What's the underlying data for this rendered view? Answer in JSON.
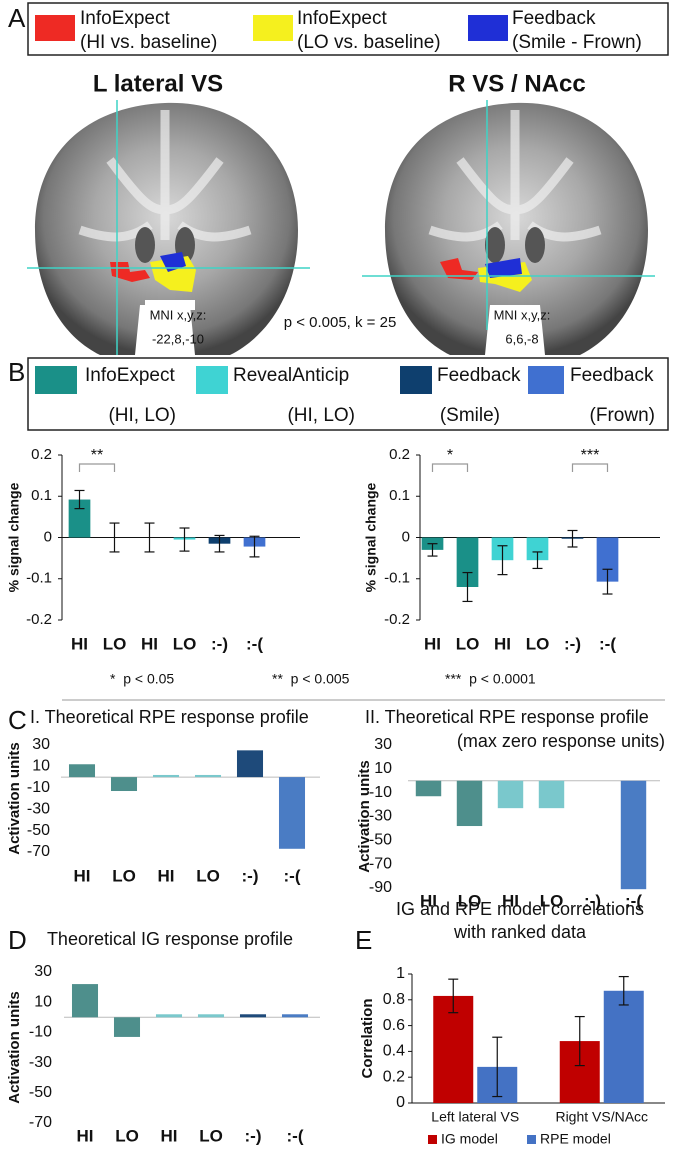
{
  "panel_labels": {
    "a": "A",
    "b": "B",
    "c": "C",
    "d": "D",
    "e": "E"
  },
  "panel_a": {
    "legend": [
      {
        "name": "InfoExpect",
        "detail": "(HI vs. baseline)",
        "color": "#ee2a24"
      },
      {
        "name": "InfoExpect",
        "detail": "(LO vs. baseline)",
        "color": "#f5f01e"
      },
      {
        "name": "Feedback",
        "detail": "(Smile - Frown)",
        "color": "#1f2fd6"
      }
    ],
    "images": [
      {
        "title": "L lateral VS",
        "coords_label": "MNI x,y,z:",
        "coords": "-22,8,-10"
      },
      {
        "title": "R VS / NAcc",
        "coords_label": "MNI x,y,z:",
        "coords": "6,6,-8"
      }
    ],
    "threshold": "p < 0.005, k = 25"
  },
  "panel_b": {
    "legend": [
      {
        "name": "InfoExpect",
        "detail": "(HI, LO)",
        "color": "#1a9088"
      },
      {
        "name": "RevealAnticip",
        "detail": "(HI, LO)",
        "color": "#3fd3d3"
      },
      {
        "name": "Feedback",
        "detail": "(Smile)",
        "color": "#0e3f6e"
      },
      {
        "name": "Feedback",
        "detail": "(Frown)",
        "color": "#4070d0"
      }
    ],
    "significance": [
      "*  p < 0.05",
      "**  p < 0.005",
      "***  p < 0.0001"
    ]
  },
  "chart_data": [
    {
      "type": "bar",
      "y_label": "% signal change",
      "categories": [
        "HI",
        "LO",
        "HI",
        "LO",
        ":-)",
        ":-("
      ],
      "values": [
        0.092,
        0.0,
        0.0,
        -0.005,
        -0.015,
        -0.022
      ],
      "errors": [
        0.022,
        0.035,
        0.035,
        0.028,
        0.02,
        0.025
      ],
      "colors": [
        "#1a9088",
        "#1a9088",
        "#3fd3d3",
        "#3fd3d3",
        "#0e3f6e",
        "#4070d0"
      ],
      "ylim": [
        -0.2,
        0.2
      ],
      "yticks": [
        0.2,
        0.1,
        0,
        -0.1,
        -0.2
      ],
      "brackets": [
        {
          "label": "**",
          "categories": [
            0,
            1
          ]
        }
      ]
    },
    {
      "type": "bar",
      "y_label": "% signal change",
      "categories": [
        "HI",
        "LO",
        "HI",
        "LO",
        ":-)",
        ":-("
      ],
      "values": [
        -0.03,
        -0.12,
        -0.055,
        -0.055,
        -0.003,
        -0.107
      ],
      "errors": [
        0.015,
        0.035,
        0.035,
        0.02,
        0.02,
        0.03
      ],
      "colors": [
        "#1a9088",
        "#1a9088",
        "#3fd3d3",
        "#3fd3d3",
        "#0e3f6e",
        "#4070d0"
      ],
      "ylim": [
        -0.2,
        0.2
      ],
      "yticks": [
        0.2,
        0.1,
        0,
        -0.1,
        -0.2
      ],
      "brackets": [
        {
          "label": "*",
          "categories": [
            0,
            1
          ]
        },
        {
          "label": "***",
          "categories": [
            4,
            5
          ]
        }
      ]
    },
    {
      "type": "bar",
      "title": "I. Theoretical RPE response profile",
      "y_label": "Activation units",
      "categories": [
        "HI",
        "LO",
        "HI",
        "LO",
        ":-)",
        ":-("
      ],
      "values": [
        12,
        -13,
        2,
        2,
        25,
        -67
      ],
      "colors": [
        "#4e8f8c",
        "#4e8f8c",
        "#7ac8cc",
        "#7ac8cc",
        "#1e4a7a",
        "#4a7cc4"
      ],
      "ylim": [
        -70,
        30
      ],
      "yticks": [
        30,
        10,
        -10,
        -30,
        -50,
        -70
      ]
    },
    {
      "type": "bar",
      "title": "II. Theoretical RPE response profile",
      "subtitle": "(max zero response units)",
      "y_label": "Activation units",
      "categories": [
        "HI",
        "LO",
        "HI",
        "LO",
        ":-)",
        ":-("
      ],
      "values": [
        -13,
        -38,
        -23,
        -23,
        0,
        -91
      ],
      "colors": [
        "#4e8f8c",
        "#4e8f8c",
        "#7ac8cc",
        "#7ac8cc",
        "#1e4a7a",
        "#4a7cc4"
      ],
      "ylim": [
        -90,
        30
      ],
      "yticks": [
        30,
        10,
        -10,
        -30,
        -50,
        -70,
        -90
      ]
    },
    {
      "type": "bar",
      "title": "Theoretical IG response profile",
      "y_label": "Activation units",
      "categories": [
        "HI",
        "LO",
        "HI",
        "LO",
        ":-)",
        ":-("
      ],
      "values": [
        22,
        -13,
        2,
        2,
        2,
        2
      ],
      "colors": [
        "#4e8f8c",
        "#4e8f8c",
        "#7ac8cc",
        "#7ac8cc",
        "#1e4a7a",
        "#4a7cc4"
      ],
      "ylim": [
        -70,
        30
      ],
      "yticks": [
        30,
        10,
        -10,
        -30,
        -50,
        -70
      ]
    },
    {
      "type": "grouped_bar",
      "title": "IG and RPE model correlations",
      "subtitle": "with ranked data",
      "y_label": "Correlation",
      "categories": [
        "Left lateral VS",
        "Right VS/NAcc"
      ],
      "series": [
        {
          "name": "IG model",
          "color": "#c00000",
          "values": [
            0.83,
            0.48
          ],
          "errors": [
            0.13,
            0.19
          ]
        },
        {
          "name": "RPE model",
          "color": "#4472c4",
          "values": [
            0.28,
            0.87
          ],
          "errors": [
            0.23,
            0.11
          ]
        }
      ],
      "ylim": [
        0,
        1
      ],
      "yticks": [
        0,
        0.2,
        0.4,
        0.6,
        0.8,
        1
      ]
    }
  ]
}
